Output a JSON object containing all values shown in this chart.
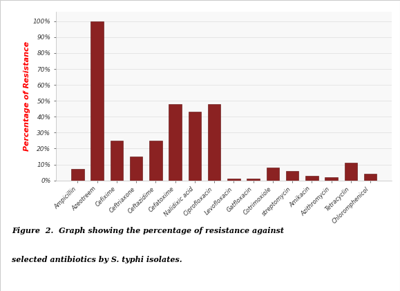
{
  "categories": [
    "Ampicillin",
    "Azeotreem",
    "Cefixime",
    "Ceftriaxone",
    "Ceftazidime",
    "Cefatoxime",
    "Nalidixic acid",
    "Ciprofloxacin",
    "Levofloxacin",
    "Gatfloxacin",
    "Cotrimoxiole",
    "streptomycin",
    "Amikacin",
    "Azithromycin",
    "Tetracyclin",
    "Chloromphenicol"
  ],
  "values": [
    7,
    100,
    25,
    15,
    25,
    48,
    43,
    48,
    1,
    1,
    8,
    6,
    3,
    2,
    11,
    4
  ],
  "bar_color": "#8B2222",
  "bar_edge_color": "#5a0a0a",
  "ylabel": "Percentage of Resistance",
  "ylabel_color": "#FF0000",
  "ytick_labels": [
    "0%",
    "10%",
    "20%",
    "30%",
    "40%",
    "50%",
    "60%",
    "70%",
    "80%",
    "90%",
    "100%"
  ],
  "ytick_values": [
    0,
    10,
    20,
    30,
    40,
    50,
    60,
    70,
    80,
    90,
    100
  ],
  "ylim": [
    0,
    106
  ],
  "bg_color": "#ffffff",
  "plot_bg_color": "#f8f8f8",
  "caption_line1": "Figure  2.  Graph showing the percentage of resistance against",
  "caption_line2": "selected antibiotics by S. typhi isolates."
}
